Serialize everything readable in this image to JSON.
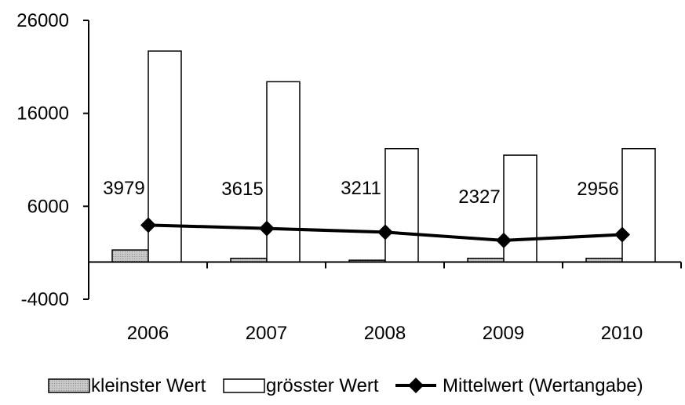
{
  "chart_data": {
    "type": "bar",
    "categories": [
      "2006",
      "2007",
      "2008",
      "2009",
      "2010"
    ],
    "ylim": [
      -4000,
      26000
    ],
    "yticks": [
      26000,
      16000,
      6000,
      -4000
    ],
    "series": [
      {
        "name": "kleinster Wert",
        "kind": "bar",
        "color": "#c0c0c0",
        "values": [
          1300,
          400,
          200,
          400,
          400
        ]
      },
      {
        "name": "grösster Wert",
        "kind": "bar",
        "color": "#ffffff",
        "values": [
          22700,
          19400,
          12200,
          11500,
          12200
        ]
      },
      {
        "name": "Mittelwert (Wertangabe)",
        "kind": "line",
        "color": "#000000",
        "values": [
          3979,
          3615,
          3211,
          2327,
          2956
        ]
      }
    ],
    "data_labels": [
      "3979",
      "3615",
      "3211",
      "2327",
      "2956"
    ],
    "legend_position": "bottom"
  }
}
